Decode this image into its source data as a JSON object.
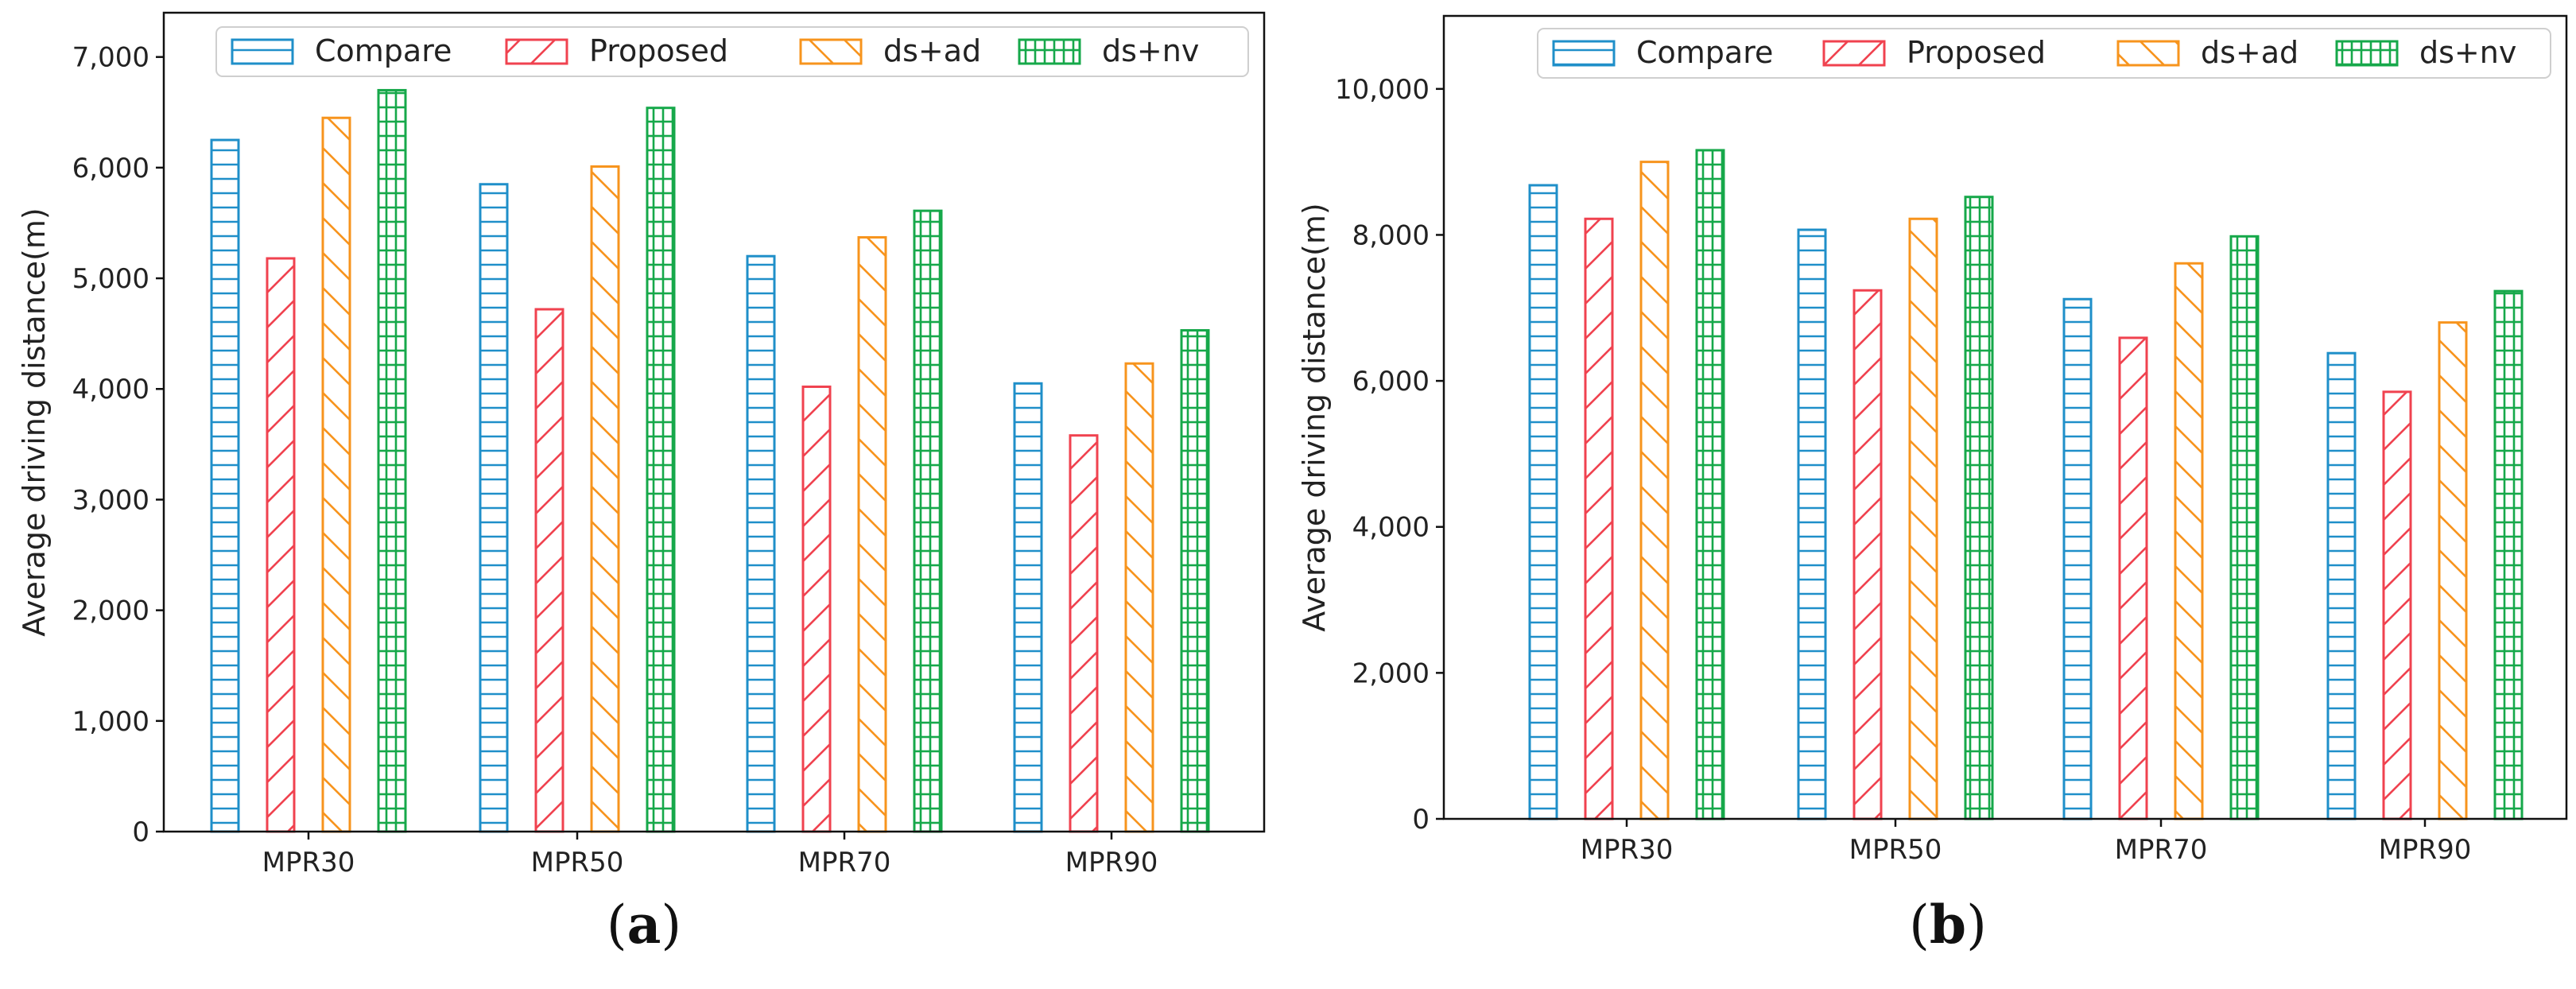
{
  "chart_data": [
    {
      "id": "a",
      "type": "bar",
      "caption_prefix": "(",
      "caption_letter": "a",
      "caption_suffix": ")",
      "categories": [
        "MPR30",
        "MPR50",
        "MPR70",
        "MPR90"
      ],
      "ylabel": "Average driving distance(m)",
      "xlabel": "",
      "title": "",
      "ylim": [
        0,
        7400
      ],
      "yticks": [
        0,
        1000,
        2000,
        3000,
        4000,
        5000,
        6000,
        7000
      ],
      "ytick_labels": [
        "0",
        "1,000",
        "2,000",
        "3,000",
        "4,000",
        "5,000",
        "6,000",
        "7,000"
      ],
      "legend_position": "top",
      "series": [
        {
          "name": "Compare",
          "color": "#1f8fc9",
          "hatch": "horizontal",
          "values": [
            6250,
            5850,
            5200,
            4050
          ]
        },
        {
          "name": "Proposed",
          "color": "#f0424f",
          "hatch": "diagonal-up",
          "values": [
            5180,
            4720,
            4020,
            3580
          ]
        },
        {
          "name": "ds+ad",
          "color": "#f7941d",
          "hatch": "diagonal-down",
          "values": [
            6450,
            6010,
            5370,
            4230
          ]
        },
        {
          "name": "ds+nv",
          "color": "#16a84a",
          "hatch": "grid",
          "values": [
            6700,
            6540,
            5610,
            4530
          ]
        }
      ]
    },
    {
      "id": "b",
      "type": "bar",
      "caption_prefix": "(",
      "caption_letter": "b",
      "caption_suffix": ")",
      "categories": [
        "MPR30",
        "MPR50",
        "MPR70",
        "MPR90"
      ],
      "ylabel": "Average driving distance(m)",
      "xlabel": "",
      "title": "",
      "ylim": [
        0,
        11000
      ],
      "yticks": [
        0,
        2000,
        4000,
        6000,
        8000,
        10000
      ],
      "ytick_labels": [
        "0",
        "2,000",
        "4,000",
        "6,000",
        "8,000",
        "10,000"
      ],
      "legend_position": "top",
      "series": [
        {
          "name": "Compare",
          "color": "#1f8fc9",
          "hatch": "horizontal",
          "values": [
            8680,
            8070,
            7120,
            6380
          ]
        },
        {
          "name": "Proposed",
          "color": "#f0424f",
          "hatch": "diagonal-up",
          "values": [
            8220,
            7240,
            6590,
            5850
          ]
        },
        {
          "name": "ds+ad",
          "color": "#f7941d",
          "hatch": "diagonal-down",
          "values": [
            9000,
            8220,
            7610,
            6800
          ]
        },
        {
          "name": "ds+nv",
          "color": "#16a84a",
          "hatch": "grid",
          "values": [
            9160,
            8520,
            7980,
            7230
          ]
        }
      ]
    }
  ]
}
